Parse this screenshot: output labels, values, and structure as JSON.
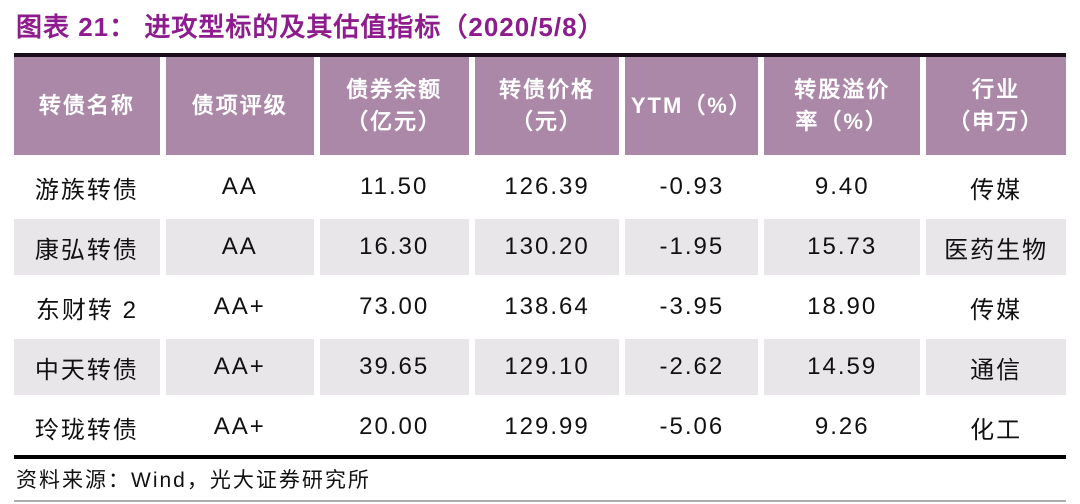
{
  "header": {
    "title": "图表 21： 进攻型标的及其估值指标（2020/5/8）"
  },
  "table": {
    "headers": [
      "转债名称",
      "债项评级",
      "债券余额\n（亿元）",
      "转债价格\n（元）",
      "YTM（%）",
      "转股溢价\n率（%）",
      "行业\n（申万）"
    ]
  },
  "chart_data": {
    "type": "table",
    "title": "图表 21： 进攻型标的及其估值指标（2020/5/8）",
    "columns": [
      "转债名称",
      "债项评级",
      "债券余额（亿元）",
      "转债价格（元）",
      "YTM（%）",
      "转股溢价率（%）",
      "行业（申万）"
    ],
    "rows": [
      [
        "游族转债",
        "AA",
        "11.50",
        "126.39",
        "-0.93",
        "9.40",
        "传媒"
      ],
      [
        "康弘转债",
        "AA",
        "16.30",
        "130.20",
        "-1.95",
        "15.73",
        "医药生物"
      ],
      [
        "东财转 2",
        "AA+",
        "73.00",
        "138.64",
        "-3.95",
        "18.90",
        "传媒"
      ],
      [
        "中天转债",
        "AA+",
        "39.65",
        "129.10",
        "-2.62",
        "14.59",
        "通信"
      ],
      [
        "玲珑转债",
        "AA+",
        "20.00",
        "129.99",
        "-5.06",
        "9.26",
        "化工"
      ]
    ]
  },
  "footer": {
    "source": "资料来源：Wind，光大证券研究所"
  },
  "colors": {
    "title_text": "#8E1C8E",
    "header_bg": "#AB87A8",
    "header_text": "#FFFFFF",
    "row_bg": "#FFFFFF",
    "row_alt_bg": "#E9E6E9",
    "body_text": "#111111",
    "top_rule": "#1A0E1A",
    "bottom_rule": "#000000",
    "footer_rule": "#ADADAD"
  }
}
